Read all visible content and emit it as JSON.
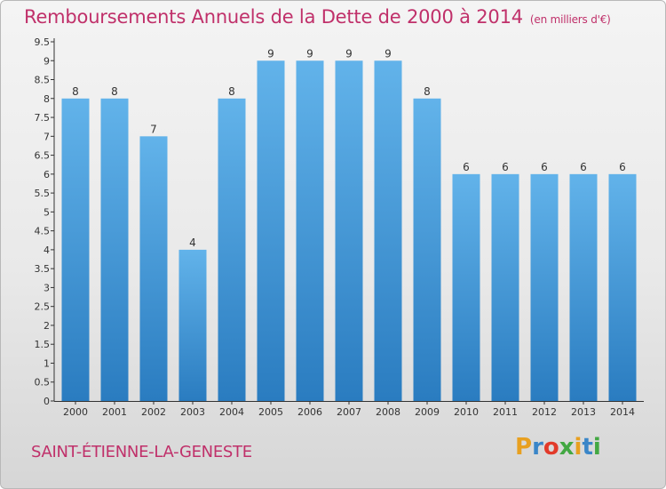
{
  "header": {
    "title": "Remboursements Annuels de la Dette de 2000 à 2014",
    "unit": "(en milliers d'€)"
  },
  "footer": {
    "city": "SAINT-ÉTIENNE-LA-GENESTE",
    "logo_text": "Proxiti",
    "logo_colors": [
      "#e8a020",
      "#3a86c8",
      "#e23a2a",
      "#43a843",
      "#e8a020",
      "#3a86c8",
      "#43a843"
    ]
  },
  "colors": {
    "title": "#c0306a",
    "bar_top": "#62b3ea",
    "bar_bottom": "#2a7cc0",
    "axis": "#333333"
  },
  "chart_data": {
    "type": "bar",
    "title": "Remboursements Annuels de la Dette de 2000 à 2014",
    "subtitle": "(en milliers d'€)",
    "categories": [
      "2000",
      "2001",
      "2002",
      "2003",
      "2004",
      "2005",
      "2006",
      "2007",
      "2008",
      "2009",
      "2010",
      "2011",
      "2012",
      "2013",
      "2014"
    ],
    "values": [
      8,
      8,
      7,
      4,
      8,
      9,
      9,
      9,
      9,
      8,
      6,
      6,
      6,
      6,
      6
    ],
    "value_labels": [
      "8",
      "8",
      "7",
      "4",
      "8",
      "9",
      "9",
      "9",
      "9",
      "8",
      "6",
      "6",
      "6",
      "6",
      "6"
    ],
    "ylim": [
      0,
      9.5
    ],
    "y_ticks": [
      "0",
      "0.5",
      "1",
      "1.5",
      "2",
      "2.5",
      "3",
      "3.5",
      "4",
      "4.5",
      "5",
      "5.5",
      "6",
      "6.5",
      "7",
      "7.5",
      "8",
      "8.5",
      "9",
      "9.5"
    ],
    "grid": false,
    "xlabel": "",
    "ylabel": ""
  }
}
